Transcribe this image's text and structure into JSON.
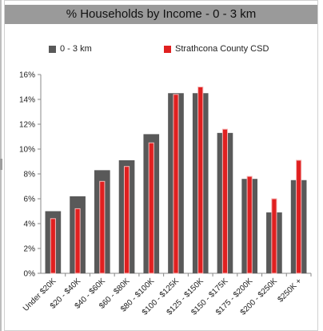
{
  "chart_data": {
    "type": "bar",
    "title": "% Households by Income - 0 - 3 km",
    "categories": [
      "Under $20K",
      "$20 - $40K",
      "$40 - $60K",
      "$60 - $80K",
      "$80 - $100K",
      "$100 - $125K",
      "$125 - $150K",
      "$150 - $175K",
      "$175 - $200K",
      "$200 - $250K",
      "$250K +"
    ],
    "series": [
      {
        "name": "0 - 3 km",
        "color": "#595959",
        "values": [
          5.0,
          6.2,
          8.3,
          9.1,
          11.2,
          14.5,
          14.5,
          11.3,
          7.6,
          4.9,
          7.5
        ]
      },
      {
        "name": "Strathcona County CSD",
        "color": "#e02020",
        "values": [
          4.4,
          5.2,
          7.4,
          8.6,
          10.5,
          14.4,
          15.0,
          11.6,
          7.8,
          6.0,
          9.1
        ]
      }
    ],
    "yticks": [
      "0%",
      "2%",
      "4%",
      "6%",
      "8%",
      "10%",
      "12%",
      "14%",
      "16%"
    ],
    "ylim": [
      0,
      16
    ],
    "legend_position": "top",
    "grid": false
  }
}
